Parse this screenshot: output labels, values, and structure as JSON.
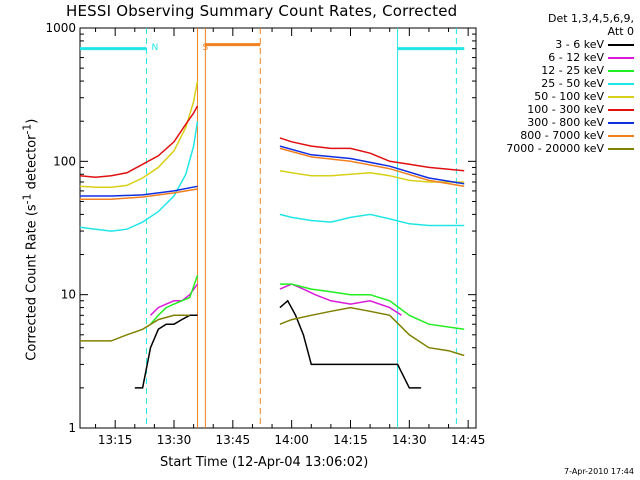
{
  "title": "HESSI Observing Summary Count Rates, Corrected",
  "legend": {
    "header_line1": "Det 1,3,4,5,6,9,",
    "header_line2": "Att 0",
    "entries": [
      {
        "label": "3 - 6 keV",
        "color": "#000000"
      },
      {
        "label": "6 - 12 keV",
        "color": "#d81bd8"
      },
      {
        "label": "12 - 25 keV",
        "color": "#22ee22"
      },
      {
        "label": "25 - 50 keV",
        "color": "#22e6e6"
      },
      {
        "label": "50 - 100 keV",
        "color": "#d8d018"
      },
      {
        "label": "100 - 300 keV",
        "color": "#e01010"
      },
      {
        "label": "300 - 800 keV",
        "color": "#1030e0"
      },
      {
        "label": "800 - 7000 keV",
        "color": "#f08020"
      },
      {
        "label": "7000 - 20000 keV",
        "color": "#808000"
      }
    ]
  },
  "timestamp": "7-Apr-2010 17:44",
  "chart_data": {
    "type": "line",
    "title": "HESSI Observing Summary Count Rates, Corrected",
    "xlabel": "Start Time (12-Apr-04 13:06:02)",
    "ylabel": "Corrected Count Rate (s⁻¹ detector⁻¹)",
    "ylabel_main": "Corrected Count Rate (s",
    "ylabel_sup1": "-1",
    "ylabel_mid": " detector",
    "ylabel_sup2": "-1",
    "ylabel_end": ")",
    "y_scale": "log",
    "ylim": [
      1,
      1000
    ],
    "xlim": [
      "13:06:02",
      "14:47:00"
    ],
    "x_tick_labels": [
      "13:15",
      "13:30",
      "13:45",
      "14:00",
      "14:15",
      "14:30",
      "14:45"
    ],
    "y_tick_labels": [
      "1",
      "10",
      "100",
      "1000"
    ],
    "markers": [
      {
        "label": "N",
        "time": "13:23:00",
        "color": "#22e6e6",
        "style": "dashed"
      },
      {
        "label": "S",
        "time": "13:36:00",
        "color": "#f08020",
        "style": "solid"
      },
      {
        "label": "",
        "time": "13:38:00",
        "color": "#f08020",
        "style": "solid"
      },
      {
        "label": "",
        "time": "13:52:00",
        "color": "#f08020",
        "style": "dashed"
      },
      {
        "label": "",
        "time": "14:27:00",
        "color": "#22e6e6",
        "style": "solid"
      },
      {
        "label": "",
        "time": "14:42:00",
        "color": "#22e6e6",
        "style": "dashed"
      }
    ],
    "night_bars": [
      {
        "start": "13:06:02",
        "end": "13:23:00",
        "color": "#22e6e6",
        "y": 700
      },
      {
        "start": "13:38:00",
        "end": "13:52:00",
        "color": "#f08020",
        "y": 750
      },
      {
        "start": "14:27:00",
        "end": "14:44:00",
        "color": "#22e6e6",
        "y": 700
      }
    ],
    "series": [
      {
        "name": "3 - 6 keV",
        "color": "#000000",
        "x": [
          "13:20",
          "13:22",
          "13:24",
          "13:26",
          "13:28",
          "13:30",
          "13:32",
          "13:34",
          "13:36",
          "13:57",
          "13:59",
          "14:01",
          "14:03",
          "14:05",
          "14:10",
          "14:15",
          "14:20",
          "14:27",
          "14:30",
          "14:33"
        ],
        "y": [
          2,
          2,
          4,
          5.5,
          6,
          6,
          6.5,
          7,
          7,
          8,
          9,
          7,
          5,
          3,
          3,
          3,
          3,
          3,
          2,
          2
        ]
      },
      {
        "name": "6 - 12 keV",
        "color": "#d81bd8",
        "x": [
          "13:24",
          "13:26",
          "13:28",
          "13:30",
          "13:32",
          "13:34",
          "13:36",
          "13:57",
          "14:00",
          "14:03",
          "14:06",
          "14:10",
          "14:15",
          "14:20",
          "14:25",
          "14:28"
        ],
        "y": [
          7,
          8,
          8.5,
          9,
          9,
          10,
          12,
          11,
          12,
          11,
          10,
          9,
          8.5,
          9,
          8,
          7
        ]
      },
      {
        "name": "12 - 25 keV",
        "color": "#22ee22",
        "x": [
          "13:24",
          "13:26",
          "13:28",
          "13:30",
          "13:32",
          "13:34",
          "13:36",
          "13:57",
          "14:00",
          "14:05",
          "14:10",
          "14:15",
          "14:20",
          "14:25",
          "14:30",
          "14:35",
          "14:44"
        ],
        "y": [
          6,
          7,
          8,
          8.5,
          9,
          9.5,
          14,
          12,
          12,
          11,
          10.5,
          10,
          10,
          9,
          7,
          6,
          5.5
        ]
      },
      {
        "name": "25 - 50 keV",
        "color": "#22e6e6",
        "x": [
          "13:06",
          "13:10",
          "13:14",
          "13:18",
          "13:22",
          "13:26",
          "13:30",
          "13:33",
          "13:35",
          "13:36",
          "13:57",
          "14:00",
          "14:05",
          "14:10",
          "14:15",
          "14:20",
          "14:25",
          "14:30",
          "14:35",
          "14:44"
        ],
        "y": [
          32,
          31,
          30,
          31,
          35,
          42,
          55,
          80,
          130,
          200,
          40,
          38,
          36,
          35,
          38,
          40,
          37,
          34,
          33,
          33
        ]
      },
      {
        "name": "50 - 100 keV",
        "color": "#d8d018",
        "x": [
          "13:06",
          "13:10",
          "13:14",
          "13:18",
          "13:22",
          "13:26",
          "13:30",
          "13:33",
          "13:35",
          "13:36",
          "13:57",
          "14:00",
          "14:05",
          "14:10",
          "14:15",
          "14:20",
          "14:25",
          "14:30",
          "14:35",
          "14:44"
        ],
        "y": [
          65,
          64,
          64,
          66,
          75,
          90,
          120,
          180,
          280,
          400,
          85,
          82,
          78,
          78,
          80,
          82,
          78,
          72,
          70,
          70
        ]
      },
      {
        "name": "100 - 300 keV",
        "color": "#e01010",
        "x": [
          "13:06",
          "13:10",
          "13:14",
          "13:18",
          "13:22",
          "13:26",
          "13:30",
          "13:33",
          "13:35",
          "13:36",
          "13:57",
          "14:00",
          "14:05",
          "14:10",
          "14:15",
          "14:20",
          "14:25",
          "14:30",
          "14:35",
          "14:44"
        ],
        "y": [
          78,
          76,
          78,
          82,
          95,
          110,
          140,
          190,
          230,
          260,
          150,
          140,
          130,
          125,
          125,
          115,
          100,
          95,
          90,
          85
        ]
      },
      {
        "name": "300 - 800 keV",
        "color": "#1030e0",
        "x": [
          "13:06",
          "13:14",
          "13:22",
          "13:30",
          "13:36",
          "13:57",
          "14:05",
          "14:15",
          "14:25",
          "14:35",
          "14:44"
        ],
        "y": [
          55,
          55,
          56,
          60,
          65,
          130,
          112,
          105,
          92,
          75,
          68
        ]
      },
      {
        "name": "800 - 7000 keV",
        "color": "#f08020",
        "x": [
          "13:06",
          "13:14",
          "13:22",
          "13:30",
          "13:36",
          "13:57",
          "14:05",
          "14:15",
          "14:25",
          "14:35",
          "14:44"
        ],
        "y": [
          52,
          52,
          54,
          58,
          62,
          125,
          108,
          100,
          88,
          72,
          65
        ]
      },
      {
        "name": "7000 - 20000 keV",
        "color": "#808000",
        "x": [
          "13:06",
          "13:10",
          "13:14",
          "13:18",
          "13:22",
          "13:26",
          "13:30",
          "13:34",
          "13:57",
          "14:00",
          "14:05",
          "14:10",
          "14:15",
          "14:20",
          "14:25",
          "14:30",
          "14:35",
          "14:40",
          "14:44"
        ],
        "y": [
          4.5,
          4.5,
          4.5,
          5,
          5.5,
          6.5,
          7,
          7,
          6,
          6.5,
          7,
          7.5,
          8,
          7.5,
          7,
          5,
          4,
          3.8,
          3.5
        ]
      }
    ]
  }
}
